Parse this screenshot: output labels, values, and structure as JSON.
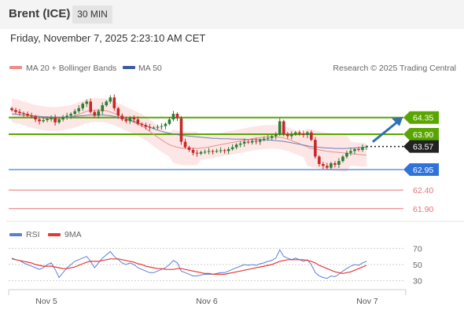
{
  "header": {
    "instrument": "Brent (ICE)",
    "timeframe": "30 MIN",
    "date": "Friday, November 7, 2025 2:23:10 AM CET"
  },
  "legend": {
    "ma20_label": "MA 20 + Bollinger Bands",
    "ma50_label": "MA 50",
    "credit": "Research © 2025 Trading Central",
    "rsi_label": "RSI",
    "rsi_ma_label": "9MA"
  },
  "colors": {
    "bull": "#2e7d32",
    "bear": "#c62828",
    "resistance": "#5aa600",
    "current": "#1a1a1a",
    "pivot": "#2f73d9",
    "support": "#e57373",
    "ma20": "#e89090",
    "ma50": "#7080b0",
    "band_fill": "#fde6e6",
    "rsi": "#5b7fd6",
    "rsi_ma": "#e53935",
    "arrow": "#2f6fb5"
  },
  "chart_data": [
    {
      "type": "candlestick",
      "name": "price",
      "ylim": [
        61.6,
        65.4
      ],
      "x_ticks": [
        "Nov 5",
        "Nov 6",
        "Nov 7"
      ],
      "levels": [
        {
          "label": "64.35",
          "value": 64.35,
          "kind": "resistance"
        },
        {
          "label": "63.90",
          "value": 63.9,
          "kind": "resistance"
        },
        {
          "label": "63.57",
          "value": 63.57,
          "kind": "current"
        },
        {
          "label": "62.95",
          "value": 62.95,
          "kind": "pivot"
        },
        {
          "label": "62.40",
          "value": 62.4,
          "kind": "support"
        },
        {
          "label": "61.90",
          "value": 61.9,
          "kind": "support"
        }
      ],
      "close": [
        64.55,
        64.5,
        64.47,
        64.45,
        64.4,
        64.38,
        64.3,
        64.25,
        64.28,
        64.31,
        64.35,
        64.22,
        64.3,
        64.36,
        64.4,
        64.45,
        64.52,
        64.6,
        64.72,
        64.78,
        64.5,
        64.4,
        64.52,
        64.68,
        64.78,
        64.89,
        64.6,
        64.4,
        64.3,
        64.25,
        64.35,
        64.3,
        64.18,
        64.15,
        64.1,
        64.08,
        64.08,
        64.1,
        64.12,
        64.18,
        64.3,
        64.45,
        64.33,
        63.7,
        63.55,
        63.48,
        63.4,
        63.38,
        63.42,
        63.43,
        63.45,
        63.44,
        63.45,
        63.47,
        63.45,
        63.5,
        63.55,
        63.62,
        63.65,
        63.7,
        63.68,
        63.72,
        63.7,
        63.75,
        63.78,
        63.8,
        63.85,
        63.9,
        64.25,
        63.9,
        63.85,
        63.9,
        63.95,
        63.92,
        63.88,
        63.95,
        63.75,
        63.3,
        63.1,
        63.05,
        63.0,
        63.12,
        63.08,
        63.18,
        63.3,
        63.4,
        63.45,
        63.5,
        63.48,
        63.55,
        63.57
      ],
      "ma20": [
        64.55,
        64.52,
        64.5,
        64.46,
        64.43,
        64.4,
        64.37,
        64.35,
        64.33,
        64.32,
        64.31,
        64.31,
        64.32,
        64.33,
        64.35,
        64.37,
        64.4,
        64.44,
        64.48,
        64.52,
        64.54,
        64.55,
        64.55,
        64.55,
        64.53,
        64.5,
        64.46,
        64.42,
        64.37,
        64.32,
        64.27,
        64.22,
        64.17,
        64.12,
        64.06,
        63.98,
        63.9,
        63.82,
        63.75,
        63.68,
        63.62,
        63.58,
        63.55,
        63.53,
        63.52,
        63.52,
        63.52,
        63.52,
        63.53,
        63.54,
        63.56,
        63.58,
        63.6,
        63.62,
        63.64,
        63.66,
        63.68,
        63.7,
        63.72,
        63.74,
        63.76,
        63.78,
        63.8,
        63.81,
        63.82,
        63.83,
        63.83,
        63.83,
        63.82,
        63.8,
        63.77,
        63.73,
        63.69,
        63.65,
        63.6,
        63.56,
        63.52,
        63.5,
        63.48,
        63.46,
        63.44,
        63.43,
        63.42,
        63.41,
        63.4,
        63.39,
        63.38,
        63.37,
        63.36,
        63.35,
        63.34
      ],
      "ma50": [
        64.45,
        64.44,
        64.43,
        64.42,
        64.41,
        64.4,
        64.39,
        64.38,
        64.37,
        64.37,
        64.36,
        64.36,
        64.36,
        64.36,
        64.36,
        64.37,
        64.38,
        64.39,
        64.4,
        64.41,
        64.42,
        64.42,
        64.42,
        64.42,
        64.41,
        64.4,
        64.38,
        64.36,
        64.34,
        64.31,
        64.28,
        64.25,
        64.21,
        64.17,
        64.13,
        64.09,
        64.05,
        64.01,
        63.98,
        63.95,
        63.93,
        63.91,
        63.89,
        63.87,
        63.86,
        63.85,
        63.84,
        63.83,
        63.82,
        63.81,
        63.8,
        63.79,
        63.79,
        63.78,
        63.78,
        63.78,
        63.77,
        63.77,
        63.77,
        63.77,
        63.76,
        63.76,
        63.76,
        63.76,
        63.75,
        63.75,
        63.74,
        63.73,
        63.72,
        63.71,
        63.69,
        63.67,
        63.65,
        63.63,
        63.61,
        63.59,
        63.57,
        63.56,
        63.55,
        63.54,
        63.53,
        63.53,
        63.52,
        63.52,
        63.52,
        63.52,
        63.53,
        63.53,
        63.54,
        63.55,
        63.56
      ]
    },
    {
      "type": "line",
      "name": "RSI",
      "ylim": [
        20,
        80
      ],
      "y_ticks": [
        70,
        50,
        30
      ],
      "series": [
        {
          "name": "RSI",
          "values": [
            58,
            56,
            55,
            52,
            50,
            48,
            46,
            44,
            46,
            50,
            52,
            44,
            34,
            40,
            46,
            50,
            54,
            56,
            58,
            60,
            54,
            46,
            52,
            58,
            62,
            66,
            60,
            56,
            52,
            50,
            52,
            50,
            46,
            44,
            42,
            40,
            40,
            42,
            44,
            46,
            50,
            55,
            52,
            42,
            40,
            38,
            36,
            36,
            37,
            38,
            38,
            38,
            39,
            40,
            40,
            42,
            44,
            46,
            48,
            50,
            49,
            50,
            49,
            51,
            52,
            54,
            55,
            58,
            68,
            60,
            58,
            56,
            58,
            56,
            54,
            56,
            50,
            40,
            36,
            34,
            33,
            36,
            35,
            38,
            42,
            45,
            48,
            50,
            49,
            52,
            54
          ]
        },
        {
          "name": "9MA",
          "values": [
            57,
            56,
            55,
            54,
            53,
            52,
            50,
            49,
            48,
            48,
            48,
            47,
            46,
            45,
            45,
            46,
            47,
            49,
            51,
            53,
            54,
            54,
            54,
            55,
            56,
            57,
            57,
            57,
            56,
            55,
            54,
            53,
            51,
            50,
            48,
            47,
            46,
            45,
            45,
            44,
            44,
            44,
            45,
            45,
            44,
            43,
            42,
            41,
            40,
            39,
            39,
            38,
            38,
            38,
            38,
            39,
            40,
            41,
            42,
            43,
            44,
            45,
            46,
            47,
            48,
            49,
            50,
            52,
            54,
            55,
            56,
            56,
            56,
            56,
            56,
            55,
            54,
            52,
            49,
            47,
            45,
            43,
            41,
            40,
            39,
            40,
            41,
            43,
            45,
            47,
            49
          ]
        }
      ]
    }
  ]
}
